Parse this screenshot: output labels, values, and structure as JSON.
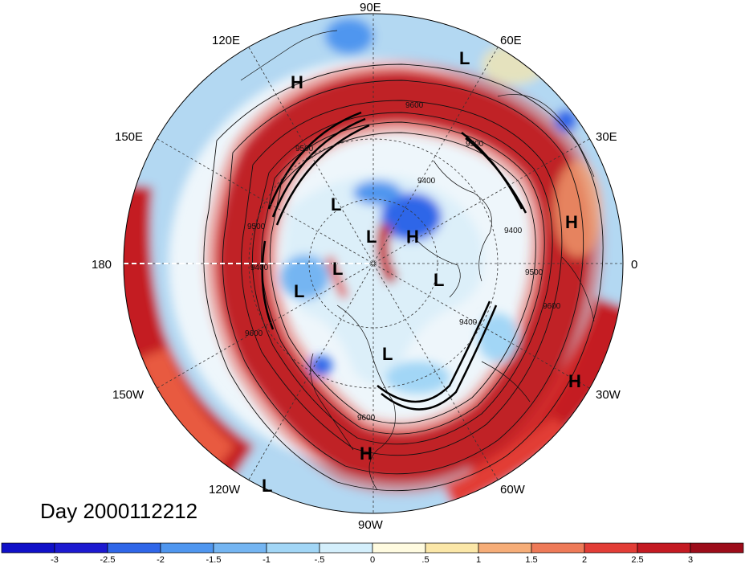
{
  "map": {
    "projection": "polar stereographic, north pole",
    "date_label": "Day 2000112212",
    "longitude_labels": [
      "90E",
      "60E",
      "30E",
      "0",
      "30W",
      "60W",
      "90W",
      "120W",
      "150W",
      "180",
      "150E",
      "120E"
    ],
    "pressure_systems": [
      {
        "type": "H",
        "label": "H"
      },
      {
        "type": "L",
        "label": "L"
      },
      {
        "type": "H",
        "label": "H"
      },
      {
        "type": "L",
        "label": "L"
      },
      {
        "type": "L",
        "label": "L"
      },
      {
        "type": "H",
        "label": "H"
      },
      {
        "type": "L",
        "label": "L"
      },
      {
        "type": "L",
        "label": "L"
      },
      {
        "type": "L",
        "label": "L"
      },
      {
        "type": "L",
        "label": "L"
      },
      {
        "type": "H",
        "label": "H"
      },
      {
        "type": "H",
        "label": "H"
      },
      {
        "type": "L",
        "label": "L"
      }
    ],
    "contour_labels": [
      "9600",
      "9500",
      "9400",
      "9400",
      "9500",
      "9600",
      "9600",
      "9500",
      "9400",
      "9400",
      "9500",
      "9600"
    ]
  },
  "colorbar": {
    "tick_labels": [
      "-3",
      "-2.5",
      "-2",
      "-1.5",
      "-1",
      "-.5",
      "0",
      ".5",
      "1",
      "1.5",
      "2",
      "2.5",
      "3"
    ],
    "colors": [
      "#1c1ad0",
      "#2f66e8",
      "#4f96ef",
      "#74b5f2",
      "#a2d6f6",
      "#d4effc",
      "#fffbe0",
      "#fbe7a8",
      "#f6ad78",
      "#ee7a58",
      "#e23d36",
      "#c41a22",
      "#9c0c1a"
    ]
  }
}
